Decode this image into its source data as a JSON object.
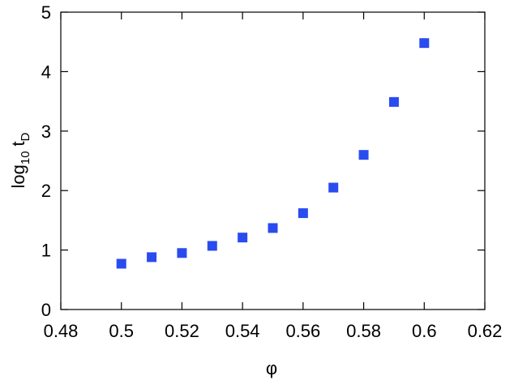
{
  "chart_data": {
    "type": "scatter",
    "xlabel": "φ",
    "ylabel": {
      "base": "log",
      "base_subscript": "10",
      "variable": "t",
      "variable_subscript": "D"
    },
    "x": [
      0.5,
      0.51,
      0.52,
      0.53,
      0.54,
      0.55,
      0.56,
      0.57,
      0.58,
      0.59,
      0.6
    ],
    "series": [
      {
        "color": "#2a4bef",
        "values": [
          0.77,
          0.88,
          0.95,
          1.07,
          1.21,
          1.37,
          1.62,
          2.05,
          2.6,
          3.49,
          4.48
        ]
      }
    ],
    "xlim": [
      0.48,
      0.62
    ],
    "xticks": [
      0.48,
      0.5,
      0.52,
      0.54,
      0.56,
      0.58,
      0.6,
      0.62
    ],
    "ylim": [
      0,
      5
    ],
    "yticks": [
      0,
      1,
      2,
      3,
      4,
      5
    ]
  }
}
